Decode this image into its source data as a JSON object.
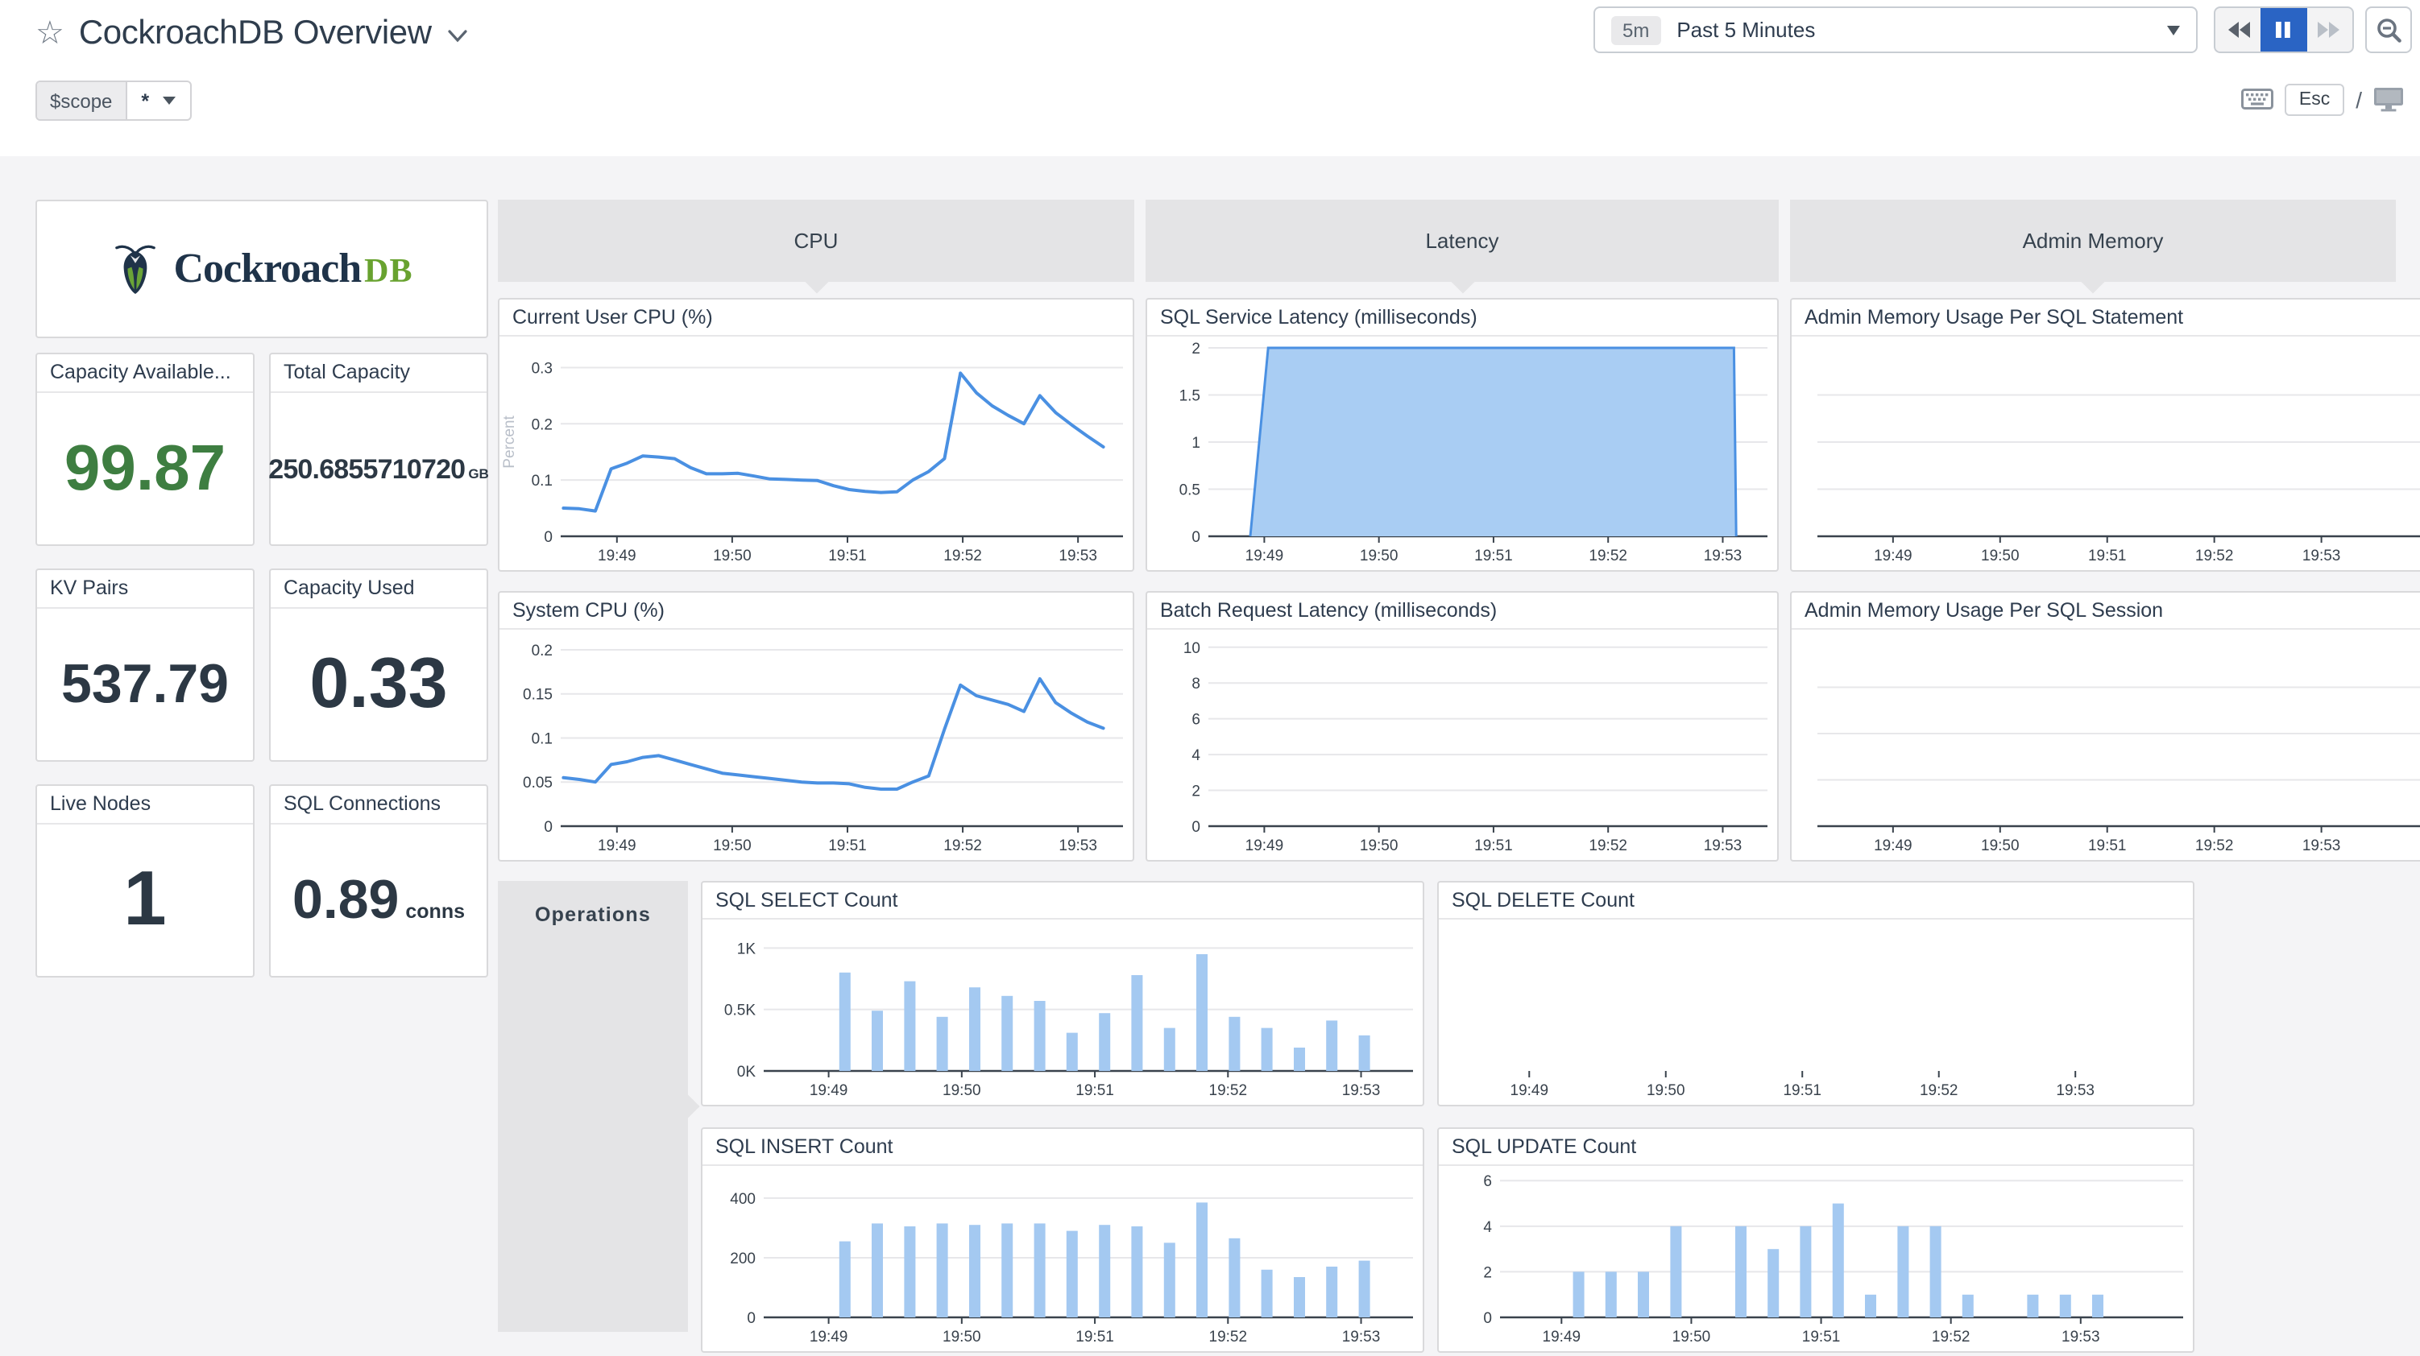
{
  "header": {
    "title": "CockroachDB Overview",
    "time": {
      "badge": "5m",
      "label": "Past 5 Minutes"
    },
    "esc": "Esc",
    "slash": "/",
    "scope": {
      "name": "$scope",
      "value": "*"
    }
  },
  "branding": {
    "word": "Cockroach",
    "suffix": "DB"
  },
  "stats": [
    {
      "label": "Capacity Available...",
      "value": "99.87",
      "unit": ""
    },
    {
      "label": "Total Capacity",
      "value": "250.6855710720",
      "unit": "GB"
    },
    {
      "label": "KV Pairs",
      "value": "537.79",
      "unit": ""
    },
    {
      "label": "Capacity Used",
      "value": "0.33",
      "unit": ""
    },
    {
      "label": "Live Nodes",
      "value": "1",
      "unit": ""
    },
    {
      "label": "SQL Connections",
      "value": "0.89",
      "unit": "conns"
    }
  ],
  "groups": {
    "cpu": "CPU",
    "latency": "Latency",
    "admin": "Admin Memory",
    "operations": "Operations"
  },
  "colors": {
    "line": "#4a90e2",
    "areaFill": "#a9cdf3",
    "barFill": "#a4c9f1",
    "axis": "#39424c",
    "grid": "#e7e7ea",
    "tick": "#39424c",
    "faint": "#b9bfc9",
    "accentBlue": "#2a64c4",
    "statGreen": "#3e7e41",
    "logoNavy": "#1f3349",
    "logoGreen": "#68a22f"
  },
  "charts": {
    "cur": {
      "title": "Current User CPU (%)",
      "type": "line",
      "ylabel": "Percent",
      "ymax": 0.335,
      "axis": true,
      "grid": "yticks",
      "yticks": [
        {
          "v": 0,
          "t": "0"
        },
        {
          "v": 0.1,
          "t": "0.1"
        },
        {
          "v": 0.2,
          "t": "0.2"
        },
        {
          "v": 0.3,
          "t": "0.3"
        }
      ],
      "xticks": [
        {
          "f": 0.1,
          "t": "19:49"
        },
        {
          "f": 0.305,
          "t": "19:50"
        },
        {
          "f": 0.51,
          "t": "19:51"
        },
        {
          "f": 0.715,
          "t": "19:52"
        },
        {
          "f": 0.92,
          "t": "19:53"
        }
      ],
      "values": [
        0.05,
        0.049,
        0.045,
        0.12,
        0.13,
        0.143,
        0.141,
        0.138,
        0.122,
        0.111,
        0.111,
        0.112,
        0.107,
        0.102,
        0.101,
        0.1,
        0.099,
        0.09,
        0.083,
        0.08,
        0.078,
        0.079,
        0.1,
        0.115,
        0.138,
        0.29,
        0.255,
        0.232,
        0.215,
        0.2,
        0.25,
        0.22,
        0.198,
        0.178,
        0.159
      ]
    },
    "sys": {
      "title": "System CPU (%)",
      "type": "line",
      "ymax": 0.21,
      "axis": true,
      "grid": "yticks",
      "yticks": [
        {
          "v": 0,
          "t": "0"
        },
        {
          "v": 0.05,
          "t": "0.05"
        },
        {
          "v": 0.1,
          "t": "0.1"
        },
        {
          "v": 0.15,
          "t": "0.15"
        },
        {
          "v": 0.2,
          "t": "0.2"
        }
      ],
      "xticks": [
        {
          "f": 0.1,
          "t": "19:49"
        },
        {
          "f": 0.305,
          "t": "19:50"
        },
        {
          "f": 0.51,
          "t": "19:51"
        },
        {
          "f": 0.715,
          "t": "19:52"
        },
        {
          "f": 0.92,
          "t": "19:53"
        }
      ],
      "values": [
        0.055,
        0.053,
        0.05,
        0.07,
        0.073,
        0.078,
        0.08,
        0.075,
        0.07,
        0.065,
        0.06,
        0.058,
        0.056,
        0.054,
        0.052,
        0.05,
        0.049,
        0.049,
        0.048,
        0.044,
        0.042,
        0.042,
        0.05,
        0.057,
        0.11,
        0.16,
        0.148,
        0.143,
        0.138,
        0.13,
        0.167,
        0.14,
        0.128,
        0.118,
        0.111
      ]
    },
    "lat": {
      "title": "SQL Service Latency (milliseconds)",
      "type": "area",
      "ymax": 2.0,
      "axis": true,
      "grid": "yticks",
      "yticks": [
        {
          "v": 0,
          "t": "0"
        },
        {
          "v": 0.5,
          "t": "0.5"
        },
        {
          "v": 1,
          "t": "1"
        },
        {
          "v": 1.5,
          "t": "1.5"
        },
        {
          "v": 2,
          "t": "2"
        }
      ],
      "xticks": [
        {
          "f": 0.1,
          "t": "19:49"
        },
        {
          "f": 0.305,
          "t": "19:50"
        },
        {
          "f": 0.51,
          "t": "19:51"
        },
        {
          "f": 0.715,
          "t": "19:52"
        },
        {
          "f": 0.92,
          "t": "19:53"
        }
      ],
      "points": [
        [
          0.075,
          0
        ],
        [
          0.107,
          2
        ],
        [
          0.94,
          2
        ],
        [
          0.944,
          0
        ]
      ]
    },
    "batch": {
      "title": "Batch Request Latency (milliseconds)",
      "type": "empty",
      "ymax": 10.35,
      "axis": true,
      "grid": "yticks",
      "yticks": [
        {
          "v": 0,
          "t": "0"
        },
        {
          "v": 2,
          "t": "2"
        },
        {
          "v": 4,
          "t": "4"
        },
        {
          "v": 6,
          "t": "6"
        },
        {
          "v": 8,
          "t": "8"
        },
        {
          "v": 10,
          "t": "10"
        }
      ],
      "xticks": [
        {
          "f": 0.1,
          "t": "19:49"
        },
        {
          "f": 0.305,
          "t": "19:50"
        },
        {
          "f": 0.51,
          "t": "19:51"
        },
        {
          "f": 0.715,
          "t": "19:52"
        },
        {
          "f": 0.92,
          "t": "19:53"
        }
      ]
    },
    "astmt": {
      "title": "Admin Memory Usage Per SQL Statement",
      "type": "empty",
      "ymax": 1,
      "axis": true,
      "grid": "quarters",
      "yticks": [],
      "xticks": [
        {
          "f": 0.12,
          "t": "19:49"
        },
        {
          "f": 0.29,
          "t": "19:50"
        },
        {
          "f": 0.46,
          "t": "19:51"
        },
        {
          "f": 0.63,
          "t": "19:52"
        },
        {
          "f": 0.8,
          "t": "19:53"
        }
      ]
    },
    "asess": {
      "title": "Admin Memory Usage Per SQL Session",
      "type": "empty",
      "ymax": 1,
      "axis": true,
      "grid": "quarters",
      "yticks": [],
      "xticks": [
        {
          "f": 0.12,
          "t": "19:49"
        },
        {
          "f": 0.29,
          "t": "19:50"
        },
        {
          "f": 0.46,
          "t": "19:51"
        },
        {
          "f": 0.63,
          "t": "19:52"
        },
        {
          "f": 0.8,
          "t": "19:53"
        }
      ]
    },
    "select": {
      "title": "SQL SELECT Count",
      "type": "bar",
      "ymax": 1.14,
      "axis": true,
      "grid": "yticks",
      "barStart": 0.125,
      "barStep": 0.05,
      "yticks": [
        {
          "v": 0,
          "t": "0K"
        },
        {
          "v": 0.5,
          "t": "0.5K"
        },
        {
          "v": 1,
          "t": "1K"
        }
      ],
      "xticks": [
        {
          "f": 0.1,
          "t": "19:49"
        },
        {
          "f": 0.305,
          "t": "19:50"
        },
        {
          "f": 0.51,
          "t": "19:51"
        },
        {
          "f": 0.715,
          "t": "19:52"
        },
        {
          "f": 0.92,
          "t": "19:53"
        }
      ],
      "values": [
        0.8,
        0.49,
        0.73,
        0.44,
        0.68,
        0.61,
        0.57,
        0.31,
        0.47,
        0.78,
        0.35,
        0.95,
        0.44,
        0.35,
        0.19,
        0.41,
        0.29
      ]
    },
    "delete": {
      "title": "SQL DELETE Count",
      "type": "empty",
      "ymax": 1,
      "axis": false,
      "grid": "none",
      "yticks": [],
      "xticks": [
        {
          "f": 0.09,
          "t": "19:49"
        },
        {
          "f": 0.28,
          "t": "19:50"
        },
        {
          "f": 0.47,
          "t": "19:51"
        },
        {
          "f": 0.66,
          "t": "19:52"
        },
        {
          "f": 0.85,
          "t": "19:53"
        }
      ]
    },
    "insert": {
      "title": "SQL INSERT Count",
      "type": "bar",
      "ymax": 470,
      "axis": true,
      "grid": "yticks",
      "barStart": 0.125,
      "barStep": 0.05,
      "yticks": [
        {
          "v": 0,
          "t": "0"
        },
        {
          "v": 200,
          "t": "200"
        },
        {
          "v": 400,
          "t": "400"
        }
      ],
      "xticks": [
        {
          "f": 0.1,
          "t": "19:49"
        },
        {
          "f": 0.305,
          "t": "19:50"
        },
        {
          "f": 0.51,
          "t": "19:51"
        },
        {
          "f": 0.715,
          "t": "19:52"
        },
        {
          "f": 0.92,
          "t": "19:53"
        }
      ],
      "values": [
        255,
        315,
        305,
        315,
        310,
        315,
        315,
        290,
        310,
        305,
        250,
        385,
        265,
        160,
        135,
        170,
        190
      ]
    },
    "update": {
      "title": "SQL UPDATE Count",
      "type": "bar",
      "ymax": 6.15,
      "axis": true,
      "grid": "yticks",
      "barStart": 0.115,
      "barStep": 0.0475,
      "yticks": [
        {
          "v": 0,
          "t": "0"
        },
        {
          "v": 2,
          "t": "2"
        },
        {
          "v": 4,
          "t": "4"
        },
        {
          "v": 6,
          "t": "6"
        }
      ],
      "xticks": [
        {
          "f": 0.09,
          "t": "19:49"
        },
        {
          "f": 0.28,
          "t": "19:50"
        },
        {
          "f": 0.47,
          "t": "19:51"
        },
        {
          "f": 0.66,
          "t": "19:52"
        },
        {
          "f": 0.85,
          "t": "19:53"
        }
      ],
      "values": [
        2,
        2,
        2,
        4,
        0,
        4,
        3,
        4,
        5,
        1,
        4,
        4,
        1,
        0,
        1,
        1,
        1
      ]
    }
  }
}
